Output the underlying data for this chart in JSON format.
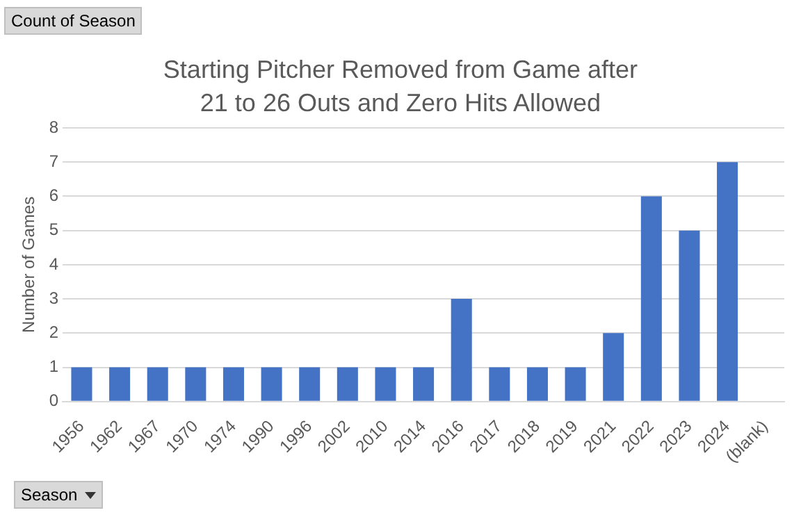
{
  "chart_data": {
    "type": "bar",
    "title": "Starting Pitcher Removed from Game after 21 to 26 Outs and Zero Hits Allowed",
    "ylabel": "Number of Games",
    "categories": [
      "1956",
      "1962",
      "1967",
      "1970",
      "1974",
      "1990",
      "1996",
      "2002",
      "2010",
      "2014",
      "2016",
      "2017",
      "2018",
      "2019",
      "2021",
      "2022",
      "2023",
      "2024",
      "(blank)"
    ],
    "values": [
      1,
      1,
      1,
      1,
      1,
      1,
      1,
      1,
      1,
      1,
      3,
      1,
      1,
      1,
      2,
      6,
      5,
      7,
      null
    ],
    "color": "#4472c4",
    "ylim": [
      0,
      8
    ],
    "yticks": [
      0,
      1,
      2,
      3,
      4,
      5,
      6,
      7,
      8
    ],
    "grid": "y",
    "legend": false,
    "annotations": [
      "Count of Season",
      "Season"
    ]
  }
}
